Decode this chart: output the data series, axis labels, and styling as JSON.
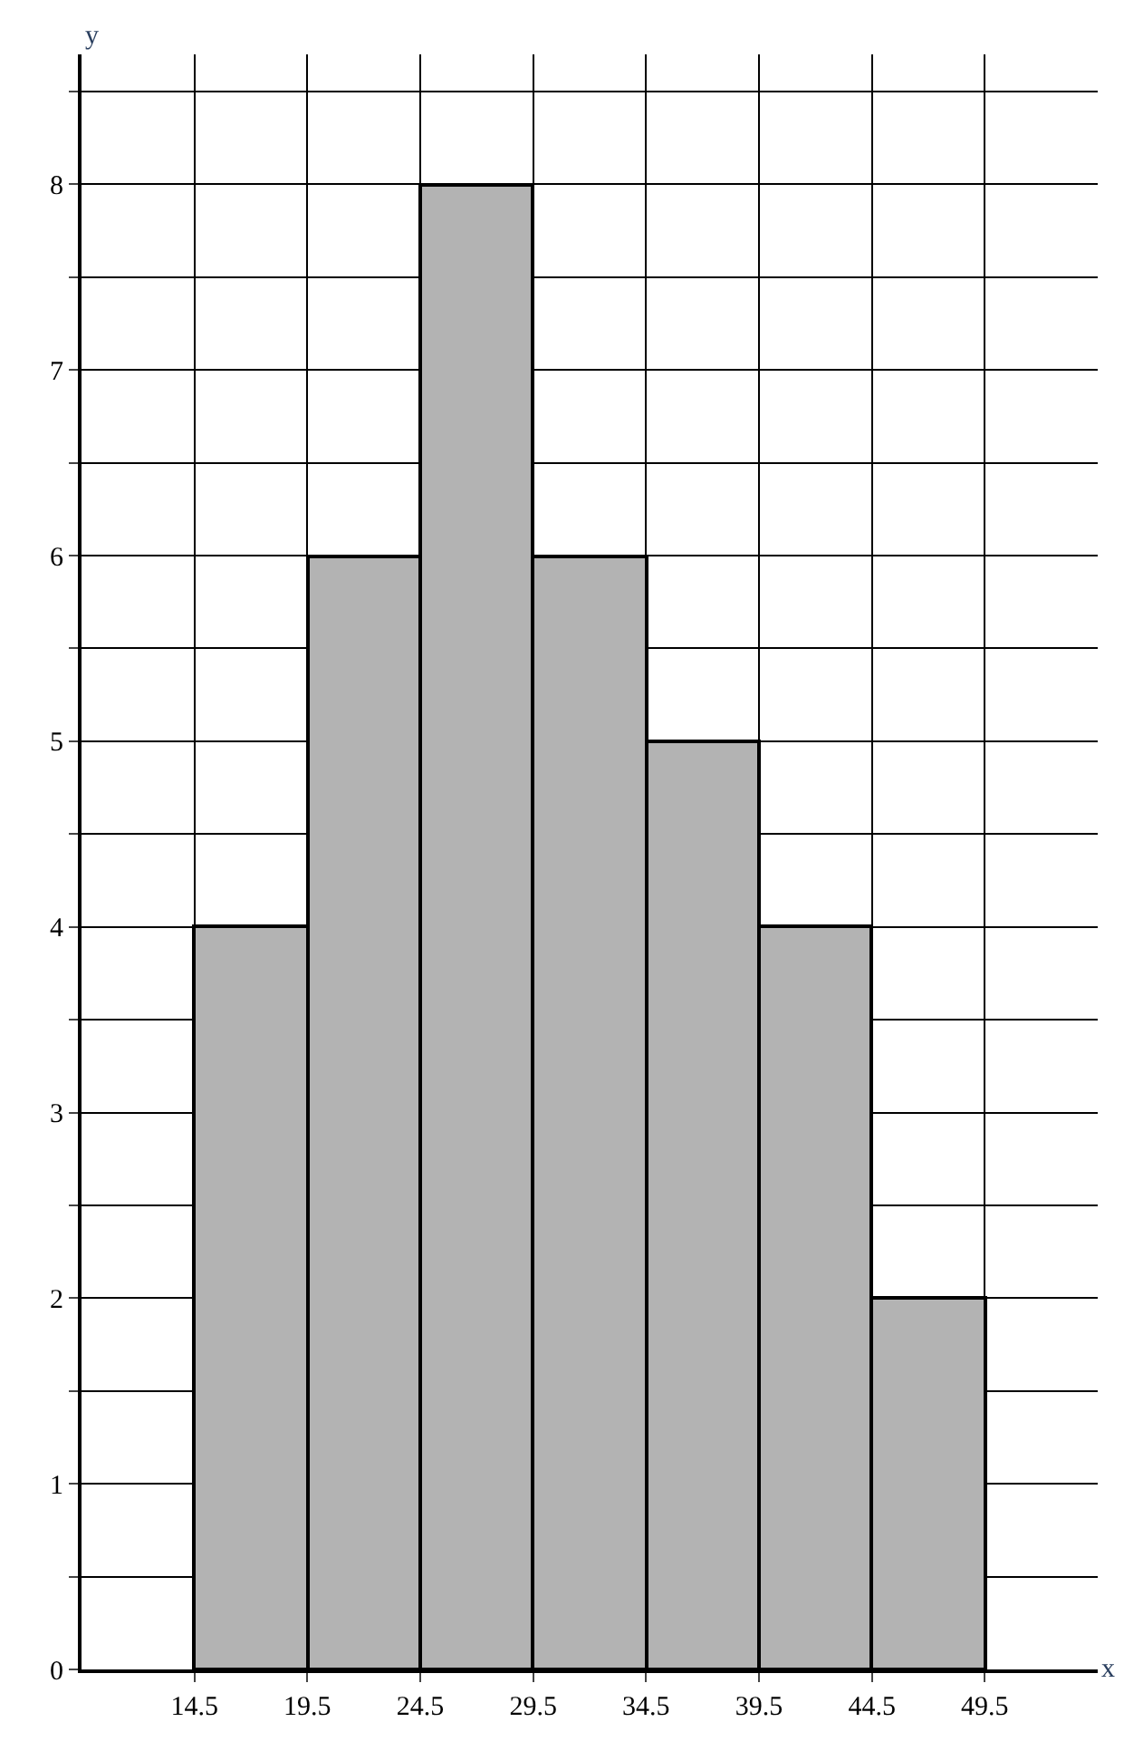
{
  "chart_data": {
    "type": "histogram",
    "xlabel": "x",
    "ylabel": "y",
    "bins": [
      14.5,
      19.5,
      24.5,
      29.5,
      34.5,
      39.5,
      44.5,
      49.5
    ],
    "values": [
      4,
      6,
      8,
      6,
      5,
      4,
      2
    ],
    "color": "#b3b3b3",
    "xlim": [
      9.5,
      54.5
    ],
    "ylim": [
      0,
      8.7
    ],
    "xticks": [
      14.5,
      19.5,
      24.5,
      29.5,
      34.5,
      39.5,
      44.5,
      49.5
    ],
    "yticks": [
      0,
      {
        "value": 0.5,
        "label": null
      },
      1,
      {
        "value": 1.5,
        "label": null
      },
      2,
      {
        "value": 2.5,
        "label": null
      },
      3,
      {
        "value": 3.5,
        "label": null
      },
      4,
      {
        "value": 4.5,
        "label": null
      },
      5,
      {
        "value": 5.5,
        "label": null
      },
      6,
      {
        "value": 6.5,
        "label": null
      },
      7,
      {
        "value": 7.5,
        "label": null
      },
      8,
      {
        "value": 8.5,
        "label": null
      }
    ],
    "grid": true
  }
}
